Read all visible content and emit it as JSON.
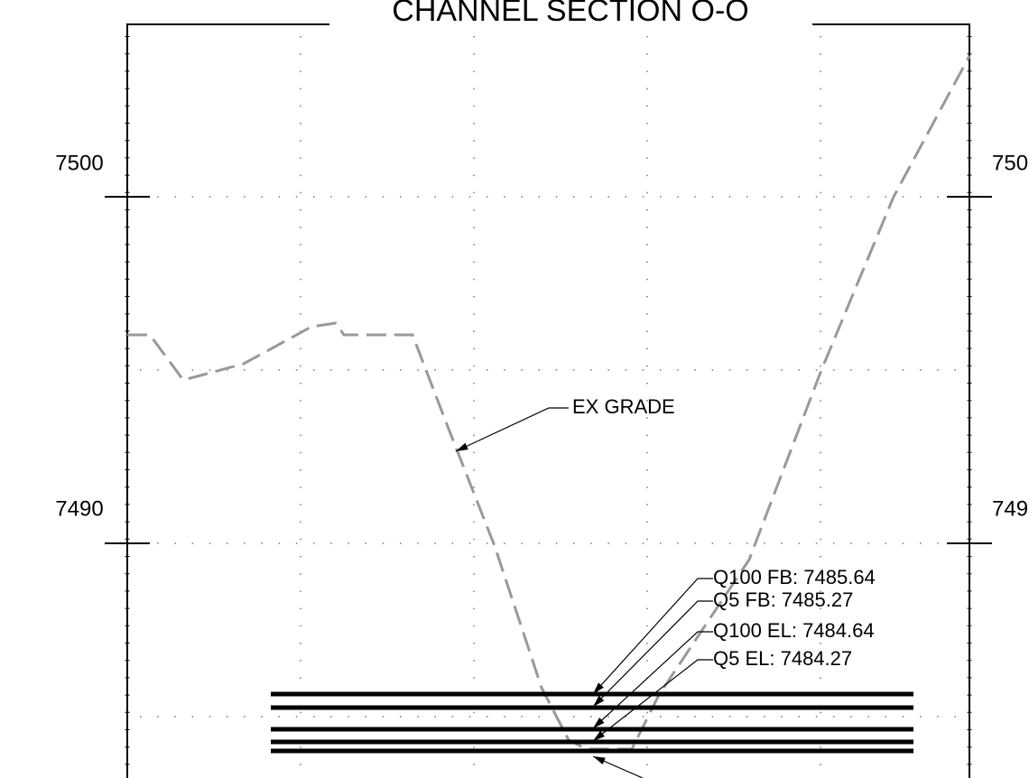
{
  "title": "CHANNEL SECTION O-O",
  "left_labels": [
    "7500",
    "7490"
  ],
  "right_labels": [
    "750",
    "749"
  ],
  "annotations": {
    "ex_grade": "EX GRADE",
    "q100_fb": "Q100 FB: 7485.64",
    "q5_fb": "Q5 FB: 7485.27",
    "q100_el": "Q100 EL: 7484.64",
    "q5_el": "Q5 EL: 7484.27"
  }
}
